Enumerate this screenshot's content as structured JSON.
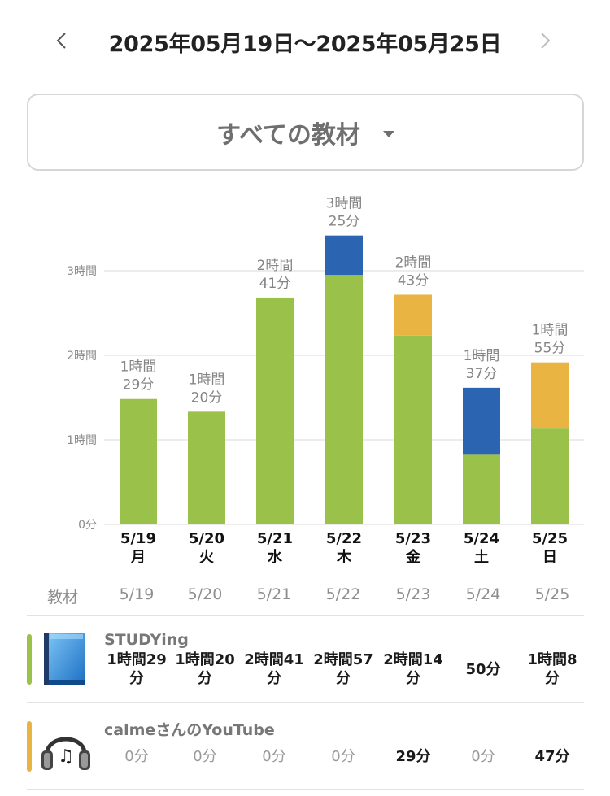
{
  "header": {
    "date_range": "2025年05月19日〜2025年05月25日",
    "prev_icon": "chevron-left-icon",
    "next_icon": "chevron-right-icon"
  },
  "material_select": {
    "label": "すべての教材",
    "icon": "caret-down-icon"
  },
  "colors": {
    "studying": "#9ac14a",
    "youtube": "#eab443",
    "blue": "#2b64b0",
    "grid": "#d9d9d9",
    "tick_text": "#8c8c8c",
    "total_text": "#858585"
  },
  "chart_data": {
    "type": "bar",
    "stacked": true,
    "ylim": [
      0,
      3.5
    ],
    "y_ticks": [
      {
        "value": 0,
        "label": "0分"
      },
      {
        "value": 1,
        "label": "1時間"
      },
      {
        "value": 2,
        "label": "2時間"
      },
      {
        "value": 3,
        "label": "3時間"
      }
    ],
    "grid": true,
    "categories": [
      {
        "date": "5/19",
        "weekday": "月"
      },
      {
        "date": "5/20",
        "weekday": "火"
      },
      {
        "date": "5/21",
        "weekday": "水"
      },
      {
        "date": "5/22",
        "weekday": "木"
      },
      {
        "date": "5/23",
        "weekday": "金"
      },
      {
        "date": "5/24",
        "weekday": "土"
      },
      {
        "date": "5/25",
        "weekday": "日"
      }
    ],
    "totals": [
      [
        "1時間",
        "29分"
      ],
      [
        "1時間",
        "20分"
      ],
      [
        "2時間",
        "41分"
      ],
      [
        "3時間",
        "25分"
      ],
      [
        "2時間",
        "43分"
      ],
      [
        "1時間",
        "37分"
      ],
      [
        "1時間",
        "55分"
      ]
    ],
    "series": [
      {
        "name": "STUDYing",
        "color": "#9ac14a",
        "values_minutes": [
          89,
          80,
          161,
          177,
          134,
          50,
          68
        ]
      },
      {
        "name": "calmeさんのYouTube",
        "color": "#eab443",
        "values_minutes": [
          0,
          0,
          0,
          0,
          29,
          0,
          47
        ]
      },
      {
        "color": "#2b64b0",
        "values_minutes": [
          0,
          0,
          0,
          28,
          0,
          47,
          0
        ]
      }
    ]
  },
  "table": {
    "header_label": "教材",
    "columns": [
      "5/19",
      "5/20",
      "5/21",
      "5/22",
      "5/23",
      "5/24",
      "5/25"
    ],
    "rows": [
      {
        "name": "STUDYing",
        "icon": "book-icon",
        "color": "#9ac14a",
        "cells": [
          {
            "text": "1時間29\n分",
            "bold": true
          },
          {
            "text": "1時間20\n分",
            "bold": true
          },
          {
            "text": "2時間41\n分",
            "bold": true
          },
          {
            "text": "2時間57\n分",
            "bold": true
          },
          {
            "text": "2時間14\n分",
            "bold": true
          },
          {
            "text": "50分",
            "bold": true
          },
          {
            "text": "1時間8\n分",
            "bold": true
          }
        ]
      },
      {
        "name": "calmeさんのYouTube",
        "icon": "headphones-icon",
        "color": "#eab443",
        "cells": [
          {
            "text": "0分",
            "bold": false
          },
          {
            "text": "0分",
            "bold": false
          },
          {
            "text": "0分",
            "bold": false
          },
          {
            "text": "0分",
            "bold": false
          },
          {
            "text": "29分",
            "bold": true
          },
          {
            "text": "0分",
            "bold": false
          },
          {
            "text": "47分",
            "bold": true
          }
        ]
      }
    ]
  }
}
